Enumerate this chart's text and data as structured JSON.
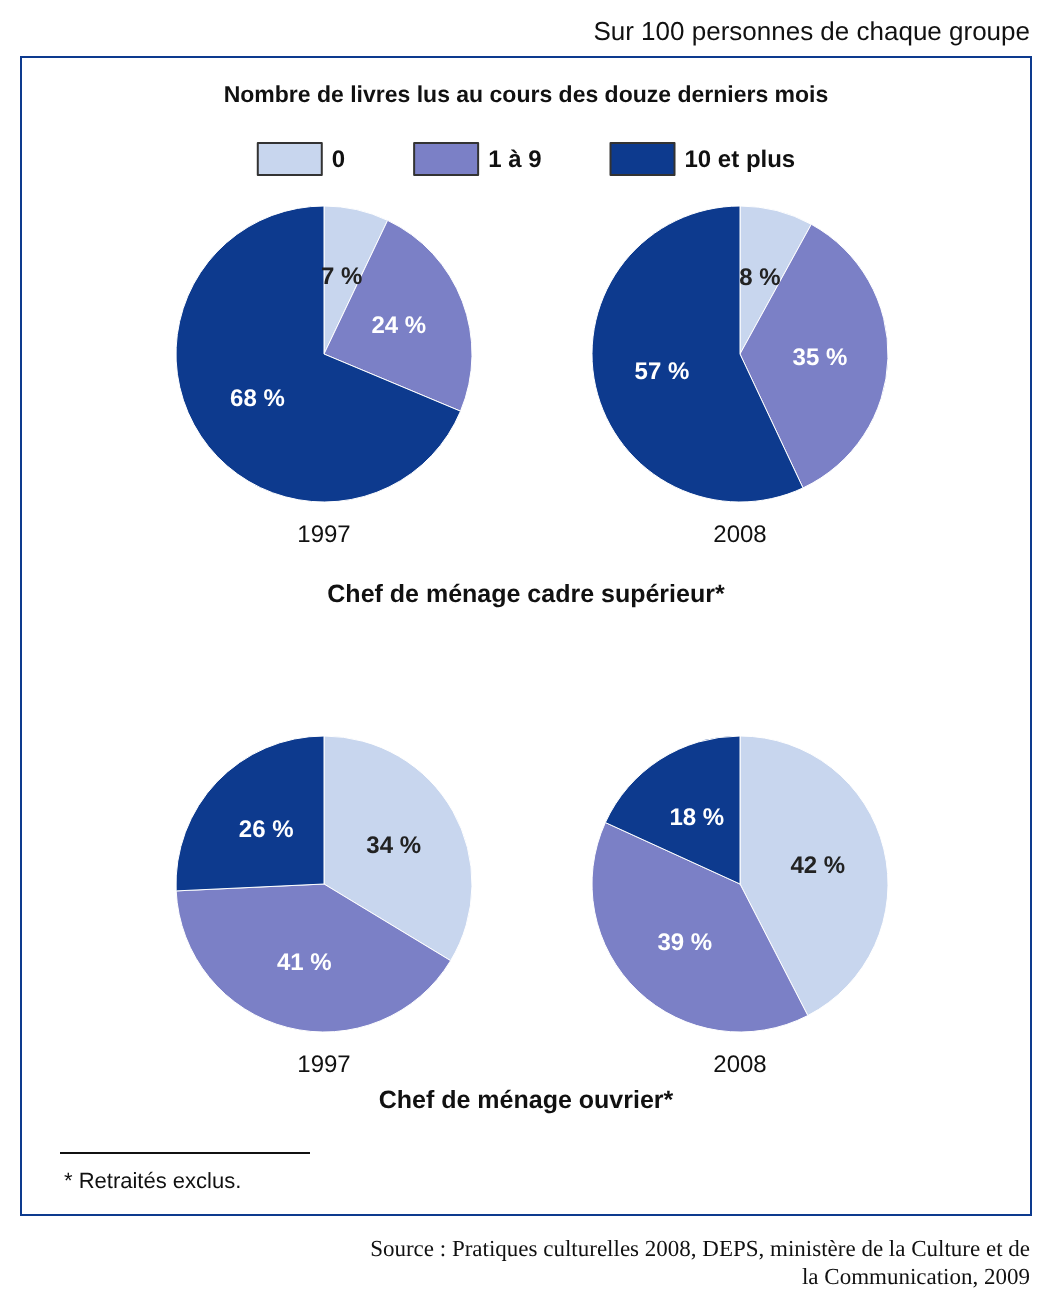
{
  "chart_data": [
    {
      "type": "pie",
      "title": "1997",
      "legend": "top",
      "annotations": [
        "Sur 100 personnes de chaque groupe",
        "Nombre de livres lus au cours des douze derniers mois",
        "Chef de ménage cadre supérieur*"
      ],
      "categories": [
        "0",
        "1 à 9",
        "10 et plus"
      ],
      "values": [
        7,
        24,
        68
      ],
      "colors": [
        "#c8d6ee",
        "#7b80c6",
        "#0d3a8e"
      ],
      "value_labels": [
        "7 %",
        "24 %",
        "68 %"
      ]
    },
    {
      "type": "pie",
      "title": "2008",
      "categories": [
        null,
        null,
        null
      ],
      "values": [
        8,
        35,
        57
      ],
      "colors": [
        "#c8d6ee",
        "#7b80c6",
        "#0d3a8e"
      ],
      "value_labels": [
        "8 %",
        "35 %",
        "57 %"
      ]
    },
    {
      "type": "pie",
      "title": "1997",
      "annotations": [
        "Chef de ménage ouvrier*"
      ],
      "categories": [
        null,
        null,
        null
      ],
      "values": [
        34,
        41,
        26
      ],
      "colors": [
        "#c8d6ee",
        "#7b80c6",
        "#0d3a8e"
      ],
      "value_labels": [
        "34 %",
        "41 %",
        "26 %"
      ]
    },
    {
      "type": "pie",
      "title": "2008",
      "annotations": [
        "* Retraités exclus.",
        "Source : Pratiques culturelles 2008, DEPS, ministère de la Culture et de la Communication, 2009"
      ],
      "categories": [
        null,
        null,
        null
      ],
      "values": [
        42,
        39,
        18
      ],
      "colors": [
        "#c8d6ee",
        "#7b80c6",
        "#0d3a8e"
      ],
      "value_labels": [
        "42 %",
        "39 %",
        "18 %"
      ]
    }
  ]
}
